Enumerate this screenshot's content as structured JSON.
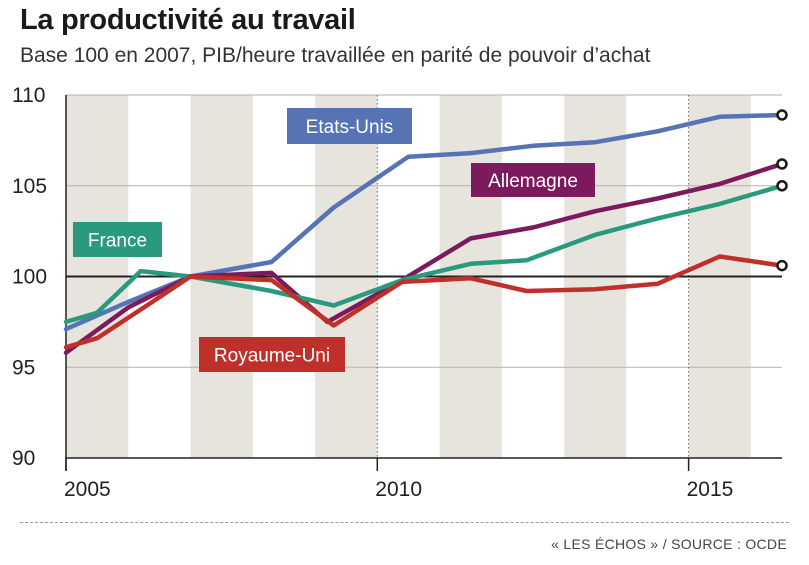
{
  "title": "La productivité au travail",
  "subtitle": "Base 100 en 2007, PIB/heure travaillée en parité de pouvoir d’achat",
  "source": "« LES ÉCHOS » / SOURCE : OCDE",
  "chart_data": {
    "type": "line",
    "title": "La productivité au travail",
    "subtitle": "Base 100 en 2007, PIB/heure travaillée en parité de pouvoir d’achat",
    "xlim": [
      2005,
      2016.5
    ],
    "ylim": [
      90,
      110
    ],
    "yticks": [
      90,
      95,
      100,
      105,
      110
    ],
    "xticks": [
      2005,
      2010,
      2015
    ],
    "reference_line": 100,
    "grid": "horizontal",
    "alternating_bands": true,
    "series": [
      {
        "name": "Etats-Unis",
        "color": "#5673b3",
        "points": [
          [
            2005,
            97.1
          ],
          [
            2006,
            98.6
          ],
          [
            2007,
            100.0
          ],
          [
            2008.3,
            100.8
          ],
          [
            2009.3,
            103.8
          ],
          [
            2010.5,
            106.6
          ],
          [
            2011.5,
            106.8
          ],
          [
            2012.5,
            107.2
          ],
          [
            2013.5,
            107.4
          ],
          [
            2014.5,
            108.0
          ],
          [
            2015.5,
            108.8
          ],
          [
            2016.5,
            108.9
          ]
        ]
      },
      {
        "name": "Allemagne",
        "color": "#7b1a5c",
        "points": [
          [
            2005,
            95.8
          ],
          [
            2006,
            98.3
          ],
          [
            2007,
            100.0
          ],
          [
            2008.3,
            100.2
          ],
          [
            2009.2,
            97.5
          ],
          [
            2010.4,
            99.8
          ],
          [
            2011.5,
            102.1
          ],
          [
            2012.5,
            102.7
          ],
          [
            2013.5,
            103.6
          ],
          [
            2014.5,
            104.3
          ],
          [
            2015.5,
            105.1
          ],
          [
            2016.5,
            106.2
          ]
        ]
      },
      {
        "name": "France",
        "color": "#2a9a7e",
        "points": [
          [
            2005,
            97.5
          ],
          [
            2005.5,
            98.0
          ],
          [
            2006.2,
            100.3
          ],
          [
            2007,
            100.0
          ],
          [
            2008.3,
            99.2
          ],
          [
            2009.3,
            98.4
          ],
          [
            2010.4,
            99.8
          ],
          [
            2011.5,
            100.7
          ],
          [
            2012.4,
            100.9
          ],
          [
            2013.5,
            102.3
          ],
          [
            2014.5,
            103.2
          ],
          [
            2015.5,
            104.0
          ],
          [
            2016.5,
            105.0
          ]
        ]
      },
      {
        "name": "Royaume-Uni",
        "color": "#c0302b",
        "points": [
          [
            2005,
            96.1
          ],
          [
            2005.5,
            96.6
          ],
          [
            2006.3,
            98.4
          ],
          [
            2007,
            100.0
          ],
          [
            2008.3,
            99.8
          ],
          [
            2009.3,
            97.3
          ],
          [
            2010.4,
            99.7
          ],
          [
            2011.5,
            99.9
          ],
          [
            2012.4,
            99.2
          ],
          [
            2013.5,
            99.3
          ],
          [
            2014.5,
            99.6
          ],
          [
            2015.5,
            101.1
          ],
          [
            2016.5,
            100.6
          ]
        ]
      }
    ]
  }
}
